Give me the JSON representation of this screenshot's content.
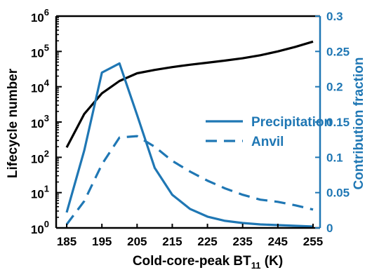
{
  "chart_data": {
    "type": "line",
    "xlabel": "Cold-core-peak BT",
    "xlabel_sub": "11",
    "xlabel_unit": " (K)",
    "ylabel_left": "Lifecycle number",
    "ylabel_right": "Contribution fraction",
    "xlim": [
      182,
      257
    ],
    "ylim_left": [
      1,
      1000000
    ],
    "y_left_scale": "log",
    "ylim_right": [
      0,
      0.3
    ],
    "x_ticks": [
      "185",
      "195",
      "205",
      "215",
      "225",
      "235",
      "245",
      "255"
    ],
    "y_left_ticks": [
      {
        "base": "10",
        "exp": "0"
      },
      {
        "base": "10",
        "exp": "1"
      },
      {
        "base": "10",
        "exp": "2"
      },
      {
        "base": "10",
        "exp": "3"
      },
      {
        "base": "10",
        "exp": "4"
      },
      {
        "base": "10",
        "exp": "5"
      },
      {
        "base": "10",
        "exp": "6"
      }
    ],
    "y_right_ticks": [
      "0",
      "0.05",
      "0.1",
      "0.15",
      "0.2",
      "0.25",
      "0.3"
    ],
    "grid": false,
    "legend_position": "center-right",
    "series": [
      {
        "axis": "left",
        "color": "#000000",
        "style": "solid",
        "x": [
          185,
          190,
          195,
          200,
          205,
          210,
          215,
          220,
          225,
          230,
          235,
          240,
          245,
          250,
          255
        ],
        "values": [
          190,
          1700,
          6500,
          14500,
          24000,
          30000,
          36000,
          42000,
          48000,
          55000,
          64000,
          78000,
          100000,
          135000,
          190000
        ]
      },
      {
        "name": "Precipitation",
        "axis": "right",
        "color": "#1f77b4",
        "style": "solid",
        "x": [
          185,
          190,
          195,
          200,
          205,
          210,
          215,
          220,
          225,
          230,
          235,
          240,
          245,
          250,
          255
        ],
        "values": [
          0.022,
          0.11,
          0.22,
          0.233,
          0.16,
          0.085,
          0.047,
          0.027,
          0.016,
          0.01,
          0.007,
          0.005,
          0.004,
          0.003,
          0.002
        ]
      },
      {
        "name": "Anvil",
        "axis": "right",
        "color": "#1f77b4",
        "style": "dashed",
        "x": [
          185,
          190,
          195,
          200,
          205,
          210,
          215,
          220,
          225,
          230,
          235,
          240,
          245,
          250,
          255
        ],
        "values": [
          0.005,
          0.038,
          0.09,
          0.128,
          0.13,
          0.115,
          0.095,
          0.08,
          0.067,
          0.056,
          0.047,
          0.04,
          0.037,
          0.032,
          0.026
        ]
      }
    ]
  }
}
